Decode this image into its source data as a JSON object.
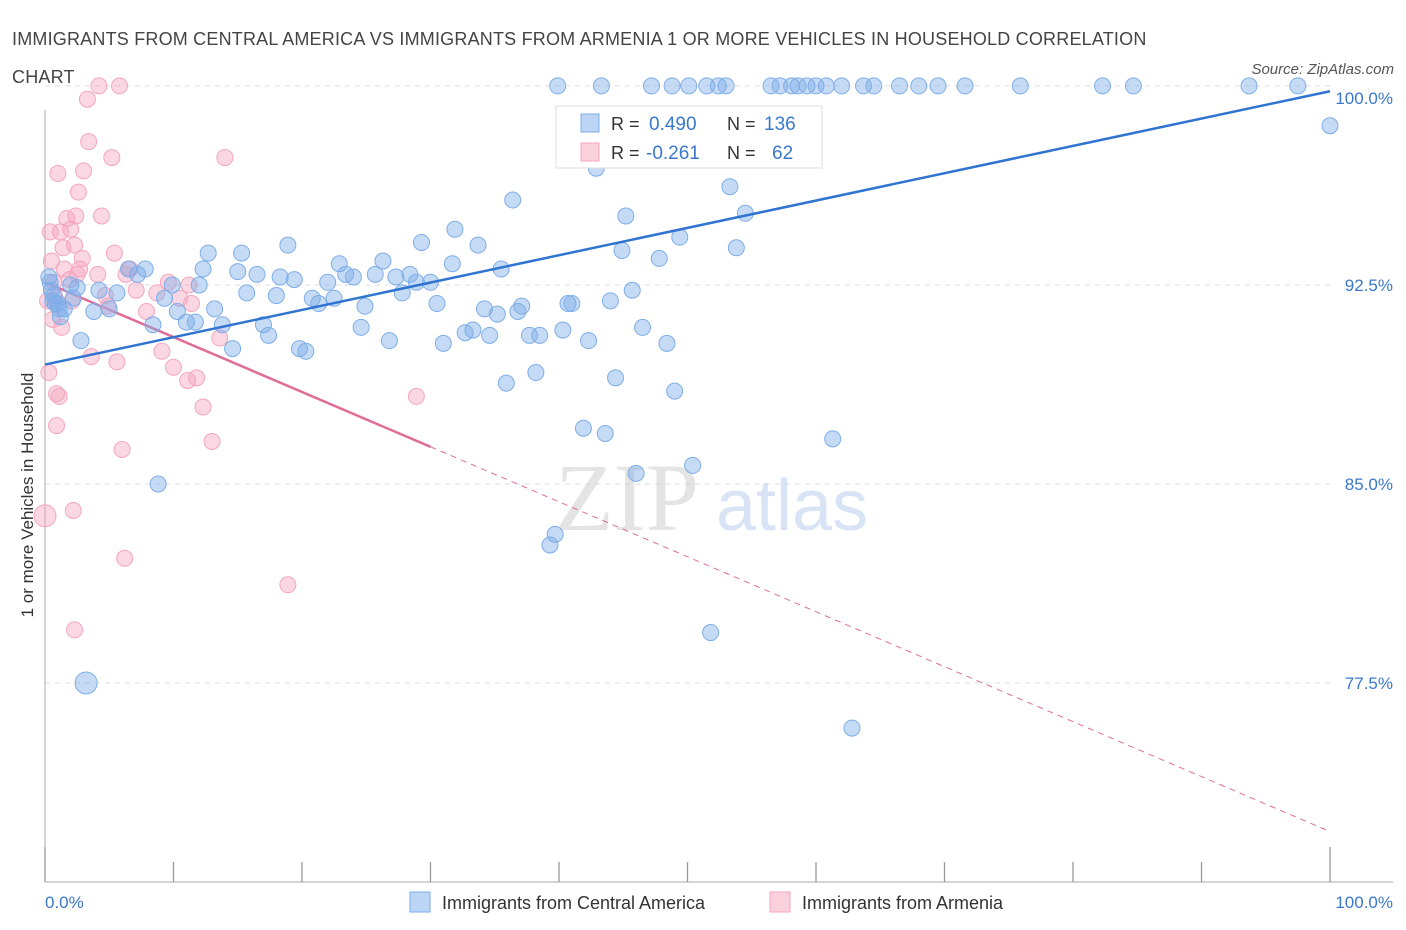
{
  "title": "IMMIGRANTS FROM CENTRAL AMERICA VS IMMIGRANTS FROM ARMENIA 1 OR MORE VEHICLES IN HOUSEHOLD CORRELATION CHART",
  "source": "Source: ZipAtlas.com",
  "watermark": {
    "zip": "ZIP",
    "atlas": "atlas"
  },
  "colors": {
    "blue": "#7eaee8",
    "blue_line": "#2f74d0",
    "pink": "#f4a6be",
    "pink_line": "#e06c98",
    "tick_label": "#3a78cc",
    "grid": "#dddddd"
  },
  "legend_stats": {
    "blue": {
      "r_label": "R =",
      "r_value": "0.490",
      "n_label": "N =",
      "n_value": "136"
    },
    "pink": {
      "r_label": "R =",
      "r_value": "-0.261",
      "n_label": "N =",
      "n_value": "62"
    }
  },
  "chart_data": {
    "type": "scatter",
    "title": "IMMIGRANTS FROM CENTRAL AMERICA VS IMMIGRANTS FROM ARMENIA 1 OR MORE VEHICLES IN HOUSEHOLD CORRELATION CHART",
    "xlabel": "",
    "ylabel": "1 or more Vehicles in Household",
    "xlim": [
      0,
      100
    ],
    "ylim": [
      70,
      100.6
    ],
    "x_tick_labels": [
      "0.0%",
      "100.0%"
    ],
    "y_ticks": [
      {
        "value": 100,
        "label": "100.0%"
      },
      {
        "value": 92.5,
        "label": "92.5%"
      },
      {
        "value": 85,
        "label": "85.0%"
      },
      {
        "value": 77.5,
        "label": "77.5%"
      }
    ],
    "grid": true,
    "legend_position": "bottom",
    "series": [
      {
        "name": "Immigrants from Central America",
        "color": "#7eaee8",
        "trend": {
          "x": [
            0,
            100
          ],
          "y": [
            89.5,
            99.8
          ]
        },
        "points": [
          [
            0.3,
            92.8
          ],
          [
            0.4,
            92.6
          ],
          [
            0.5,
            92.3
          ],
          [
            0.6,
            91.9
          ],
          [
            0.7,
            92.1
          ],
          [
            0.8,
            91.8
          ],
          [
            1.0,
            91.8
          ],
          [
            1.1,
            91.6
          ],
          [
            1.2,
            91.3
          ],
          [
            1.5,
            91.6
          ],
          [
            2.0,
            92.5
          ],
          [
            2.2,
            92.0
          ],
          [
            2.5,
            92.4
          ],
          [
            2.8,
            90.4
          ],
          [
            3.2,
            77.5
          ],
          [
            3.8,
            91.5
          ],
          [
            4.2,
            92.3
          ],
          [
            5.0,
            91.6
          ],
          [
            5.6,
            92.2
          ],
          [
            6.5,
            93.1
          ],
          [
            7.2,
            92.9
          ],
          [
            7.8,
            93.1
          ],
          [
            8.4,
            91.0
          ],
          [
            8.8,
            85.0
          ],
          [
            9.3,
            92.0
          ],
          [
            9.9,
            92.5
          ],
          [
            10.3,
            91.5
          ],
          [
            11.0,
            91.1
          ],
          [
            11.7,
            91.1
          ],
          [
            12.0,
            92.5
          ],
          [
            12.3,
            93.1
          ],
          [
            12.7,
            93.7
          ],
          [
            13.2,
            91.6
          ],
          [
            13.8,
            91.0
          ],
          [
            14.6,
            90.1
          ],
          [
            15.0,
            93.0
          ],
          [
            15.3,
            93.7
          ],
          [
            15.7,
            92.2
          ],
          [
            16.5,
            92.9
          ],
          [
            17.0,
            91.0
          ],
          [
            17.4,
            90.6
          ],
          [
            18.0,
            92.1
          ],
          [
            18.3,
            92.8
          ],
          [
            18.9,
            94.0
          ],
          [
            19.4,
            92.7
          ],
          [
            19.8,
            90.1
          ],
          [
            20.3,
            90.0
          ],
          [
            20.8,
            92.0
          ],
          [
            21.3,
            91.8
          ],
          [
            22.0,
            92.6
          ],
          [
            22.5,
            92.0
          ],
          [
            22.9,
            93.3
          ],
          [
            23.4,
            92.9
          ],
          [
            24.0,
            92.8
          ],
          [
            24.6,
            90.9
          ],
          [
            24.9,
            91.7
          ],
          [
            25.7,
            92.9
          ],
          [
            26.3,
            93.4
          ],
          [
            26.8,
            90.4
          ],
          [
            27.3,
            92.8
          ],
          [
            27.8,
            92.2
          ],
          [
            28.4,
            92.9
          ],
          [
            28.9,
            92.6
          ],
          [
            29.3,
            94.1
          ],
          [
            30.0,
            92.6
          ],
          [
            30.5,
            91.8
          ],
          [
            31.0,
            90.3
          ],
          [
            31.7,
            93.3
          ],
          [
            31.9,
            94.6
          ],
          [
            32.7,
            90.7
          ],
          [
            33.3,
            90.8
          ],
          [
            33.7,
            94.0
          ],
          [
            34.2,
            91.6
          ],
          [
            34.6,
            90.6
          ],
          [
            35.2,
            91.4
          ],
          [
            35.5,
            93.1
          ],
          [
            35.9,
            88.8
          ],
          [
            36.4,
            95.7
          ],
          [
            36.8,
            91.5
          ],
          [
            37.1,
            91.7
          ],
          [
            37.7,
            90.6
          ],
          [
            38.2,
            89.2
          ],
          [
            38.5,
            90.6
          ],
          [
            39.3,
            82.7
          ],
          [
            39.7,
            83.1
          ],
          [
            39.9,
            100.0
          ],
          [
            40.3,
            90.8
          ],
          [
            40.7,
            91.8
          ],
          [
            41.0,
            91.8
          ],
          [
            41.6,
            98.0
          ],
          [
            41.9,
            87.1
          ],
          [
            42.3,
            90.4
          ],
          [
            42.9,
            96.9
          ],
          [
            43.3,
            100.0
          ],
          [
            43.6,
            86.9
          ],
          [
            44.0,
            91.9
          ],
          [
            44.4,
            89.0
          ],
          [
            44.9,
            93.8
          ],
          [
            45.2,
            95.1
          ],
          [
            45.7,
            92.3
          ],
          [
            46.0,
            85.4
          ],
          [
            46.5,
            90.9
          ],
          [
            47.2,
            100.0
          ],
          [
            47.8,
            93.5
          ],
          [
            48.4,
            90.3
          ],
          [
            48.8,
            100.0
          ],
          [
            49.0,
            88.5
          ],
          [
            49.4,
            94.3
          ],
          [
            50.1,
            100.0
          ],
          [
            50.4,
            85.7
          ],
          [
            51.5,
            100.0
          ],
          [
            51.8,
            79.4
          ],
          [
            52.4,
            100.0
          ],
          [
            53.0,
            100.0
          ],
          [
            53.3,
            96.2
          ],
          [
            53.8,
            93.9
          ],
          [
            54.5,
            95.2
          ],
          [
            56.0,
            97.7
          ],
          [
            56.5,
            100.0
          ],
          [
            57.2,
            100.0
          ],
          [
            58.1,
            100.0
          ],
          [
            58.6,
            100.0
          ],
          [
            59.3,
            100.0
          ],
          [
            60.0,
            100.0
          ],
          [
            60.8,
            100.0
          ],
          [
            61.3,
            86.7
          ],
          [
            62.0,
            100.0
          ],
          [
            62.8,
            75.8
          ],
          [
            63.7,
            100.0
          ],
          [
            64.5,
            100.0
          ],
          [
            66.5,
            100.0
          ],
          [
            68.0,
            100.0
          ],
          [
            69.5,
            100.0
          ],
          [
            71.6,
            100.0
          ],
          [
            75.9,
            100.0
          ],
          [
            82.3,
            100.0
          ],
          [
            84.7,
            100.0
          ],
          [
            93.7,
            100.0
          ],
          [
            97.5,
            100.0
          ],
          [
            100.0,
            98.5
          ]
        ]
      },
      {
        "name": "Immigrants from Armenia",
        "color": "#f4a6be",
        "trend": {
          "x": [
            0,
            30
          ],
          "y": [
            92.6,
            86.4
          ]
        },
        "trend_dashed": {
          "x": [
            30,
            100
          ],
          "y": [
            86.4,
            71.9
          ]
        },
        "points": [
          [
            0.0,
            83.8
          ],
          [
            0.2,
            91.9
          ],
          [
            0.3,
            89.2
          ],
          [
            0.4,
            94.5
          ],
          [
            0.5,
            93.4
          ],
          [
            0.6,
            91.2
          ],
          [
            0.7,
            92.6
          ],
          [
            0.8,
            92.0
          ],
          [
            0.9,
            87.2
          ],
          [
            1.0,
            96.7
          ],
          [
            1.1,
            88.3
          ],
          [
            1.2,
            94.5
          ],
          [
            1.3,
            90.9
          ],
          [
            1.5,
            93.1
          ],
          [
            1.7,
            95.0
          ],
          [
            1.9,
            92.7
          ],
          [
            2.1,
            91.9
          ],
          [
            2.3,
            94.0
          ],
          [
            2.5,
            92.9
          ],
          [
            2.7,
            93.1
          ],
          [
            3.0,
            96.8
          ],
          [
            3.3,
            99.5
          ],
          [
            3.6,
            89.8
          ],
          [
            4.1,
            92.9
          ],
          [
            4.7,
            92.1
          ],
          [
            4.9,
            91.7
          ],
          [
            5.2,
            97.3
          ],
          [
            5.6,
            89.6
          ],
          [
            6.0,
            86.3
          ],
          [
            6.3,
            92.9
          ],
          [
            6.6,
            93.1
          ],
          [
            7.1,
            92.3
          ],
          [
            7.9,
            91.5
          ],
          [
            8.7,
            92.2
          ],
          [
            9.1,
            90.0
          ],
          [
            9.6,
            92.6
          ],
          [
            10.0,
            89.4
          ],
          [
            10.5,
            92.0
          ],
          [
            11.1,
            88.9
          ],
          [
            11.4,
            91.8
          ],
          [
            11.8,
            89.0
          ],
          [
            12.3,
            87.9
          ],
          [
            13.0,
            86.6
          ],
          [
            13.6,
            90.5
          ],
          [
            14.0,
            97.3
          ],
          [
            0.9,
            88.4
          ],
          [
            1.4,
            93.9
          ],
          [
            2.0,
            94.6
          ],
          [
            2.4,
            95.1
          ],
          [
            2.6,
            96.0
          ],
          [
            2.9,
            93.5
          ],
          [
            3.4,
            97.9
          ],
          [
            4.2,
            100.0
          ],
          [
            4.4,
            95.1
          ],
          [
            5.4,
            93.7
          ],
          [
            5.8,
            100.0
          ],
          [
            6.2,
            82.2
          ],
          [
            2.2,
            84.0
          ],
          [
            2.3,
            79.5
          ],
          [
            18.9,
            81.2
          ],
          [
            28.9,
            88.3
          ],
          [
            11.2,
            92.5
          ]
        ]
      }
    ]
  }
}
